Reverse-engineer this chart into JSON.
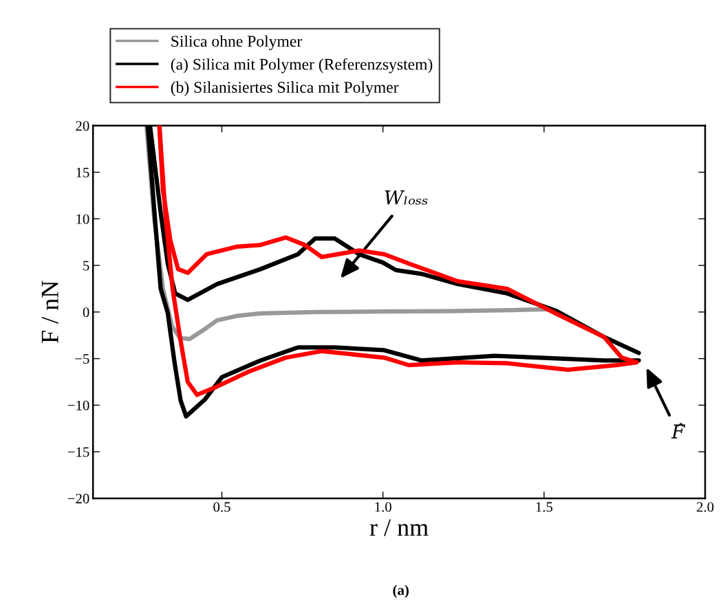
{
  "chart_data": {
    "type": "line",
    "xlabel": "r / nm",
    "ylabel": "F / nN",
    "xlim": [
      0.1,
      2.0
    ],
    "xticks": [
      0.5,
      {
        "value": 1,
        "label": "1.0"
      },
      1.5,
      {
        "value": 2,
        "label": "2.0"
      }
    ],
    "ylim": [
      -20,
      20
    ],
    "yticks": [
      -20,
      -15,
      -10,
      -5,
      0,
      5,
      10,
      15,
      20
    ],
    "grid": false,
    "legend": "top",
    "marker": "none",
    "line_style": "solid",
    "series": [
      {
        "name": "Silica ohne Polymer",
        "color": "#999999",
        "x": [
          0.266,
          0.29,
          0.317,
          0.345,
          0.37,
          0.4,
          0.44,
          0.485,
          0.55,
          0.62,
          0.8,
          1.0,
          1.2,
          1.4,
          1.52
        ],
        "values": [
          20,
          10,
          2.5,
          -1.5,
          -2.8,
          -2.9,
          -2.0,
          -0.9,
          -0.4,
          -0.15,
          0.0,
          0.05,
          0.1,
          0.2,
          0.3
        ]
      },
      {
        "name": "(a) Silica mit Polymer (Referenzsystem)",
        "color": "#000000",
        "x": [
          0.27,
          0.29,
          0.31,
          0.332,
          0.353,
          0.372,
          0.389,
          0.447,
          0.5,
          0.62,
          0.736,
          0.85,
          1.004,
          1.119,
          1.347,
          1.687,
          1.794
        ],
        "values": [
          20,
          11,
          2.5,
          -0.1,
          -5.4,
          -9.5,
          -11.2,
          -9.4,
          -7.0,
          -5.2,
          -3.8,
          -3.8,
          -4.1,
          -5.2,
          -4.7,
          -5.2,
          -5.2
        ]
      },
      {
        "color": "#000000",
        "x": [
          0.277,
          0.283,
          0.311,
          0.332,
          0.355,
          0.394,
          0.485,
          0.62,
          0.736,
          0.79,
          0.85,
          0.926,
          1.0,
          1.04,
          1.119,
          1.232,
          1.385,
          1.536,
          1.687,
          1.794
        ],
        "values": [
          20,
          18.3,
          10.4,
          5.2,
          2.0,
          1.3,
          3.0,
          4.6,
          6.2,
          7.9,
          7.9,
          6.2,
          5.3,
          4.5,
          4.1,
          3.0,
          2.0,
          0.15,
          -2.7,
          -4.4
        ]
      },
      {
        "name": "(b) Silanisiertes Silica mit Polymer",
        "color": "#ff0000",
        "x": [
          0.306,
          0.325,
          0.347,
          0.37,
          0.394,
          0.423,
          0.485,
          0.583,
          0.698,
          0.81,
          1.004,
          1.08,
          1.232,
          1.385,
          1.574,
          1.725,
          1.787
        ],
        "values": [
          20,
          10.4,
          2.5,
          -2.7,
          -7.5,
          -8.9,
          -8.0,
          -6.4,
          -4.9,
          -4.2,
          -4.9,
          -5.7,
          -5.4,
          -5.5,
          -6.2,
          -5.7,
          -5.4
        ]
      },
      {
        "color": "#ff0000",
        "x": [
          0.306,
          0.317,
          0.34,
          0.364,
          0.394,
          0.453,
          0.545,
          0.62,
          0.698,
          0.757,
          0.81,
          0.926,
          1.004,
          1.08,
          1.232,
          1.385,
          1.536,
          1.687,
          1.741,
          1.787
        ],
        "values": [
          20,
          13.1,
          7.7,
          4.6,
          4.2,
          6.2,
          7.0,
          7.2,
          8.0,
          7.2,
          5.9,
          6.6,
          6.2,
          5.2,
          3.3,
          2.5,
          -0.15,
          -2.7,
          -4.9,
          -5.4
        ]
      }
    ],
    "annotations": [
      "Wₗₒₛₛ",
      "F̂",
      "(a)"
    ]
  }
}
